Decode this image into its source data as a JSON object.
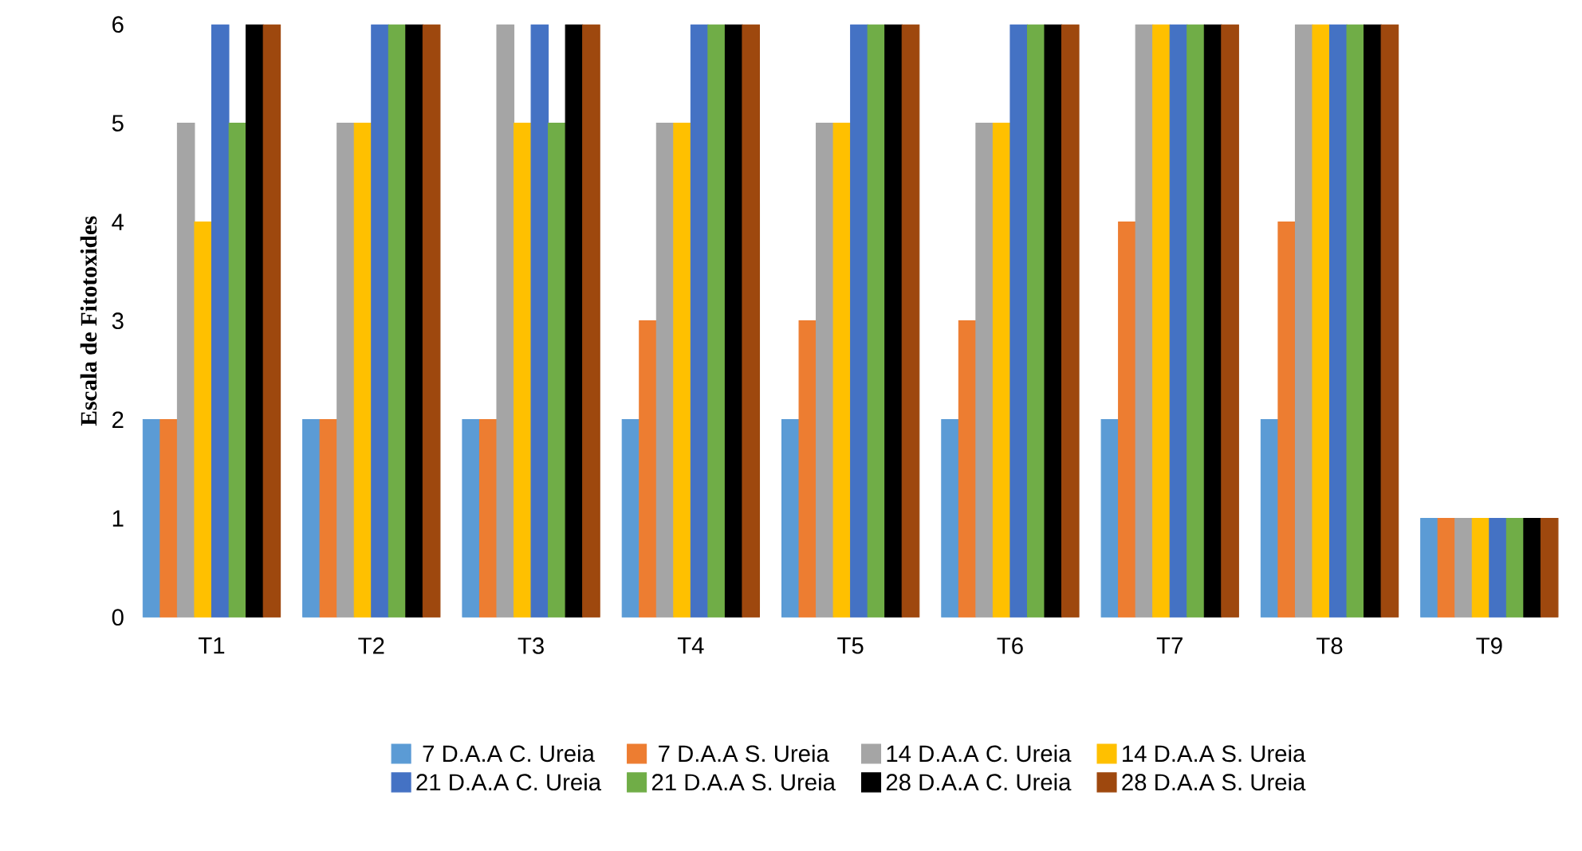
{
  "chart_data": {
    "type": "bar",
    "ylabel": "Escala de Fitotoxides",
    "categories": [
      "T1",
      "T2",
      "T3",
      "T4",
      "T5",
      "T6",
      "T7",
      "T8",
      "T9"
    ],
    "ylim": [
      0,
      6
    ],
    "yticks": [
      0,
      1,
      2,
      3,
      4,
      5,
      6
    ],
    "legend": "bottom",
    "series": [
      {
        "name": "7 D.A.A C. Ureia",
        "color": "#5b9bd5",
        "values": [
          2,
          2,
          2,
          2,
          2,
          2,
          2,
          2,
          1
        ]
      },
      {
        "name": "7 D.A.A S. Ureia",
        "color": "#ed7d31",
        "values": [
          2,
          2,
          2,
          3,
          3,
          3,
          4,
          4,
          1
        ]
      },
      {
        "name": "14 D.A.A C. Ureia",
        "color": "#a5a5a5",
        "values": [
          5,
          5,
          6,
          5,
          5,
          5,
          6,
          6,
          1
        ]
      },
      {
        "name": "14 D.A.A S. Ureia",
        "color": "#ffc000",
        "values": [
          4,
          5,
          5,
          5,
          5,
          5,
          6,
          6,
          1
        ]
      },
      {
        "name": "21 D.A.A C. Ureia",
        "color": "#4472c4",
        "values": [
          6,
          6,
          6,
          6,
          6,
          6,
          6,
          6,
          1
        ]
      },
      {
        "name": "21 D.A.A S. Ureia",
        "color": "#70ad47",
        "values": [
          5,
          6,
          5,
          6,
          6,
          6,
          6,
          6,
          1
        ]
      },
      {
        "name": "28 D.A.A C. Ureia",
        "color": "#000000",
        "values": [
          6,
          6,
          6,
          6,
          6,
          6,
          6,
          6,
          1
        ]
      },
      {
        "name": "28 D.A.A S. Ureia",
        "color": "#9e480e",
        "values": [
          6,
          6,
          6,
          6,
          6,
          6,
          6,
          6,
          1
        ]
      }
    ]
  }
}
